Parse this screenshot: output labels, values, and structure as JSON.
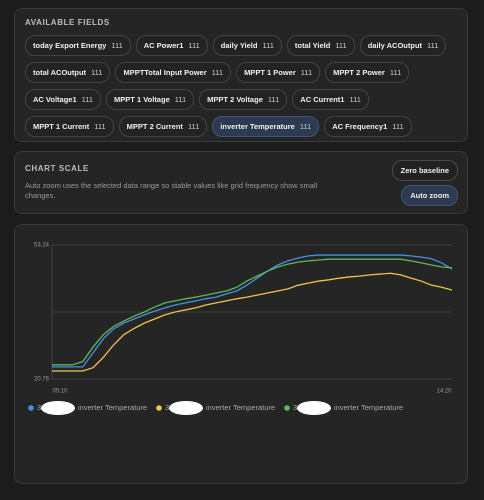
{
  "fields": {
    "title": "AVAILABLE FIELDS",
    "items": [
      {
        "label": "today Export Energy",
        "count": 111
      },
      {
        "label": "AC Power1",
        "count": 111
      },
      {
        "label": "daily Yield",
        "count": 111
      },
      {
        "label": "total Yield",
        "count": 111
      },
      {
        "label": "daily ACOutput",
        "count": 111
      },
      {
        "label": "total ACOutput",
        "count": 111
      },
      {
        "label": "MPPTTotal Input Power",
        "count": 111
      },
      {
        "label": "MPPT 1 Power",
        "count": 111
      },
      {
        "label": "MPPT 2 Power",
        "count": 111
      },
      {
        "label": "AC Voltage1",
        "count": 111
      },
      {
        "label": "MPPT 1 Voltage",
        "count": 111
      },
      {
        "label": "MPPT 2 Voltage",
        "count": 111
      },
      {
        "label": "AC Current1",
        "count": 111
      },
      {
        "label": "MPPT 1 Current",
        "count": 111
      },
      {
        "label": "MPPT 2 Current",
        "count": 111
      },
      {
        "label": "inverter Temperature",
        "count": 111,
        "selected": true
      },
      {
        "label": "AC Frequency1",
        "count": 111
      }
    ]
  },
  "scale": {
    "title": "CHART SCALE",
    "description": "Auto zoom uses the selected data range so stable values like grid frequency show small changes.",
    "buttons": [
      {
        "label": "Zero baseline",
        "active": false
      },
      {
        "label": "Auto zoom",
        "active": true
      }
    ]
  },
  "chart_data": {
    "type": "line",
    "x_labels": [
      "05:10",
      "14:20"
    ],
    "ylim": [
      20.76,
      53.24
    ],
    "yticks": [
      20.76,
      53.24
    ],
    "grid": true,
    "series": [
      {
        "prefix": "3",
        "name": "inverter Temperature",
        "color": "#4a8fe0",
        "values": [
          23.7,
          23.7,
          23.7,
          23.7,
          27.1,
          30.5,
          32.9,
          34.3,
          35.3,
          36.3,
          37.2,
          38.0,
          38.7,
          39.2,
          39.7,
          40.2,
          40.6,
          41.4,
          42.1,
          43.5,
          45.2,
          46.9,
          48.4,
          49.4,
          50.1,
          50.6,
          50.8,
          50.8,
          50.8,
          50.8,
          50.8,
          50.8,
          50.8,
          50.8,
          50.8,
          50.6,
          50.3,
          49.9,
          48.9,
          47.4
        ]
      },
      {
        "prefix": "3",
        "name": "inverter Temperature",
        "color": "#f2c24e",
        "values": [
          22.7,
          22.7,
          22.7,
          22.7,
          23.5,
          26.0,
          29.0,
          31.5,
          33.0,
          34.3,
          35.3,
          36.3,
          37.0,
          37.5,
          38.0,
          38.7,
          39.2,
          39.7,
          40.2,
          40.6,
          41.1,
          41.6,
          42.1,
          42.6,
          43.5,
          44.0,
          44.5,
          44.8,
          45.2,
          45.5,
          45.7,
          46.0,
          46.2,
          46.4,
          46.0,
          45.2,
          44.5,
          43.5,
          43.0,
          42.3
        ]
      },
      {
        "prefix": "3",
        "name": "inverter Temperature",
        "color": "#5cb85c",
        "values": [
          24.2,
          24.2,
          24.2,
          25.0,
          28.5,
          31.5,
          33.5,
          34.8,
          36.0,
          37.0,
          38.2,
          39.2,
          39.7,
          40.2,
          40.6,
          41.1,
          41.6,
          42.1,
          43.0,
          44.5,
          45.7,
          46.9,
          47.9,
          48.6,
          49.1,
          49.4,
          49.6,
          49.8,
          49.8,
          49.8,
          49.8,
          49.8,
          49.8,
          49.8,
          49.8,
          49.4,
          48.9,
          48.4,
          47.9,
          47.7
        ]
      }
    ]
  }
}
